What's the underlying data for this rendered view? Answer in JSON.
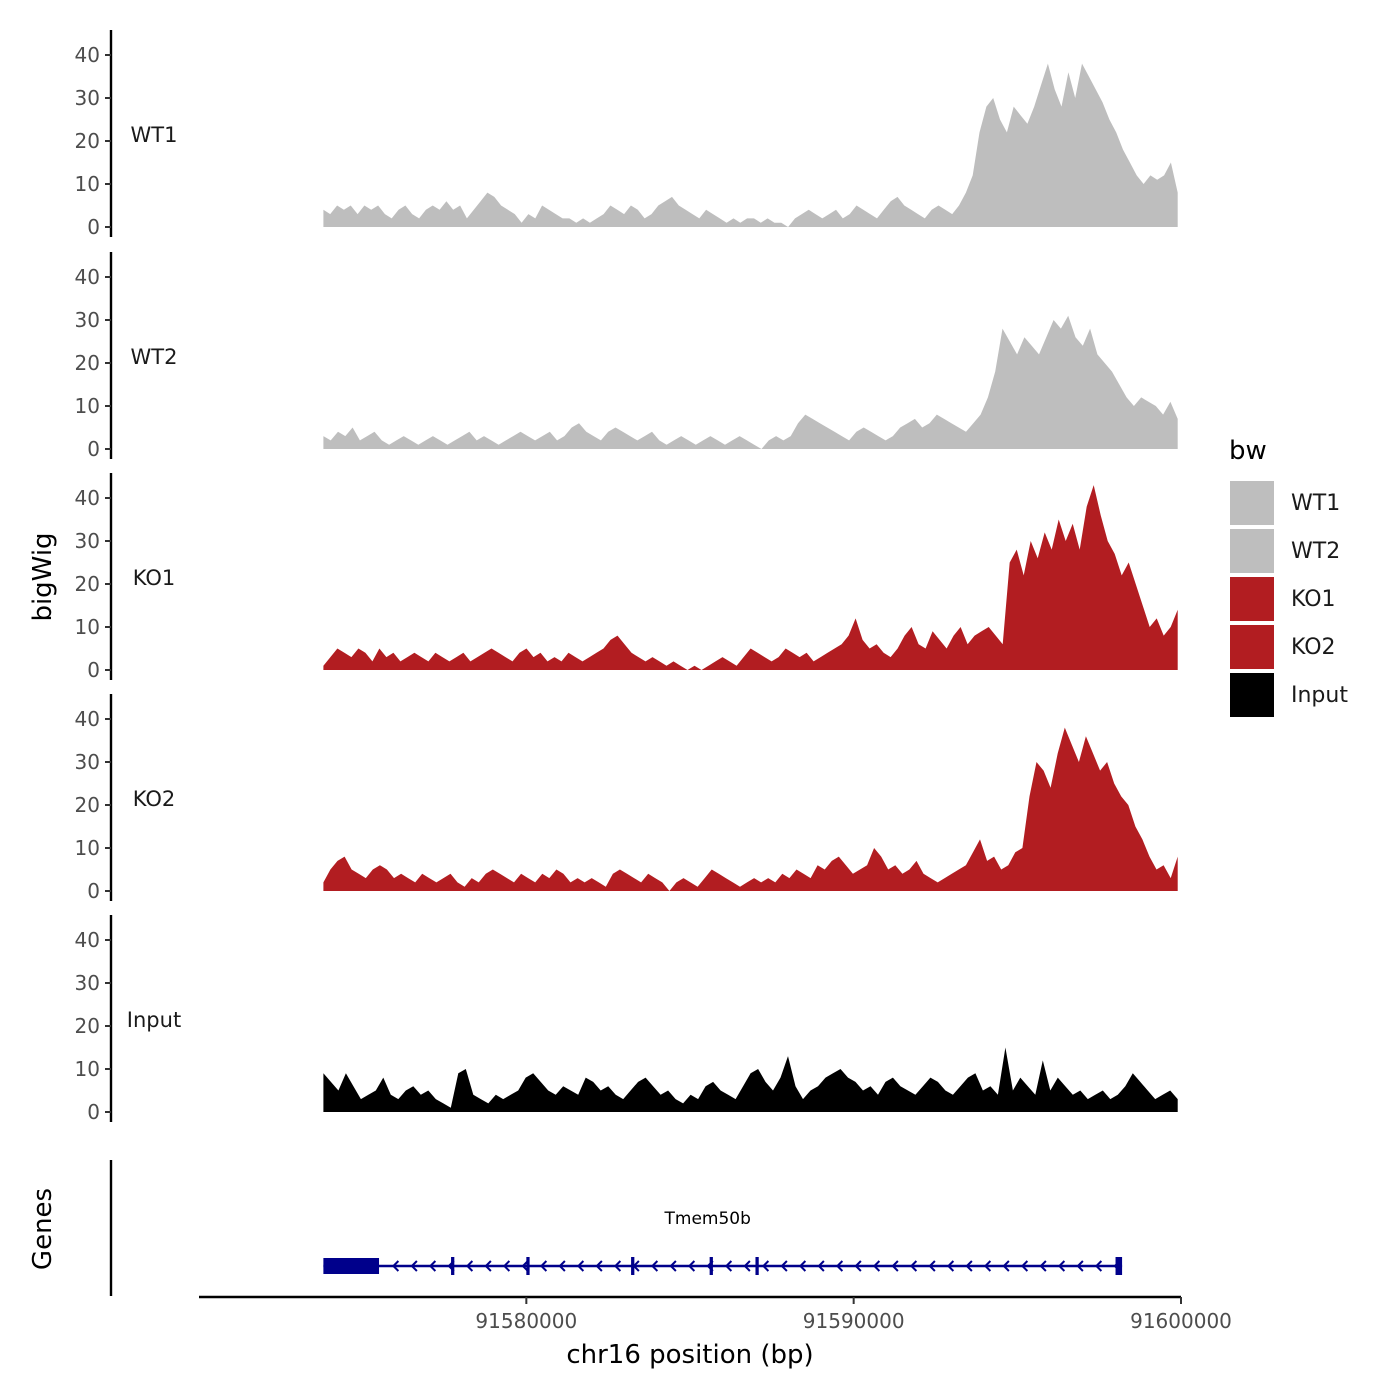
{
  "chart_data": {
    "type": "area",
    "ylabel": "bigWig",
    "xlabel": "chr16 position (bp)",
    "xlim": [
      91570000,
      91600000
    ],
    "ylim": [
      0,
      45
    ],
    "y_ticks": [
      0,
      10,
      20,
      30,
      40
    ],
    "y_tick_labels": [
      "0",
      "10",
      "20",
      "30",
      "40"
    ],
    "x_ticks": [
      91580000,
      91590000,
      91600000
    ],
    "x_tick_labels": [
      "91580000",
      "91590000",
      "91600000"
    ],
    "legend": {
      "title": "bw",
      "position": "right",
      "entries": [
        {
          "label": "WT1",
          "color": "#bebebe"
        },
        {
          "label": "WT2",
          "color": "#bebebe"
        },
        {
          "label": "KO1",
          "color": "#b21d21"
        },
        {
          "label": "KO2",
          "color": "#b21d21"
        },
        {
          "label": "Input",
          "color": "#000000"
        }
      ]
    },
    "tracks": [
      {
        "name": "WT1",
        "color": "#bebebe",
        "x_start": 91573800,
        "x_end": 91599900,
        "values": [
          4,
          3,
          5,
          4,
          5,
          3,
          5,
          4,
          5,
          3,
          2,
          4,
          5,
          3,
          2,
          4,
          5,
          4,
          6,
          4,
          5,
          2,
          4,
          6,
          8,
          7,
          5,
          4,
          3,
          1,
          3,
          2,
          5,
          4,
          3,
          2,
          2,
          1,
          2,
          1,
          2,
          3,
          5,
          4,
          3,
          5,
          4,
          2,
          3,
          5,
          6,
          7,
          5,
          4,
          3,
          2,
          4,
          3,
          2,
          1,
          2,
          1,
          2,
          2,
          1,
          2,
          1,
          1,
          0,
          2,
          3,
          4,
          3,
          2,
          3,
          4,
          2,
          3,
          5,
          4,
          3,
          2,
          4,
          6,
          7,
          5,
          4,
          3,
          2,
          4,
          5,
          4,
          3,
          5,
          8,
          12,
          22,
          28,
          30,
          25,
          22,
          28,
          26,
          24,
          28,
          33,
          38,
          32,
          28,
          36,
          30,
          38,
          35,
          32,
          29,
          25,
          22,
          18,
          15,
          12,
          10,
          12,
          11,
          12,
          15,
          8
        ]
      },
      {
        "name": "WT2",
        "color": "#bebebe",
        "x_start": 91573800,
        "x_end": 91599900,
        "values": [
          3,
          2,
          4,
          3,
          5,
          2,
          3,
          4,
          2,
          1,
          2,
          3,
          2,
          1,
          2,
          3,
          2,
          1,
          2,
          3,
          4,
          2,
          3,
          2,
          1,
          2,
          3,
          4,
          3,
          2,
          3,
          4,
          2,
          3,
          5,
          6,
          4,
          3,
          2,
          4,
          5,
          4,
          3,
          2,
          3,
          4,
          2,
          1,
          2,
          3,
          2,
          1,
          2,
          3,
          2,
          1,
          2,
          3,
          2,
          1,
          0,
          2,
          3,
          2,
          3,
          6,
          8,
          7,
          6,
          5,
          4,
          3,
          2,
          4,
          5,
          4,
          3,
          2,
          3,
          5,
          6,
          7,
          5,
          6,
          8,
          7,
          6,
          5,
          4,
          6,
          8,
          12,
          18,
          28,
          25,
          22,
          26,
          24,
          22,
          26,
          30,
          28,
          31,
          26,
          24,
          28,
          22,
          20,
          18,
          15,
          12,
          10,
          12,
          11,
          10,
          8,
          11,
          7
        ]
      },
      {
        "name": "KO1",
        "color": "#b21d21",
        "x_start": 91573800,
        "x_end": 91599900,
        "values": [
          1,
          3,
          5,
          4,
          3,
          5,
          4,
          2,
          5,
          3,
          4,
          2,
          3,
          4,
          3,
          2,
          4,
          3,
          2,
          3,
          4,
          2,
          3,
          4,
          5,
          4,
          3,
          2,
          4,
          5,
          3,
          4,
          2,
          3,
          2,
          4,
          3,
          2,
          3,
          4,
          5,
          7,
          8,
          6,
          4,
          3,
          2,
          3,
          2,
          1,
          2,
          1,
          0,
          1,
          0,
          1,
          2,
          3,
          2,
          1,
          3,
          5,
          4,
          3,
          2,
          3,
          5,
          4,
          3,
          4,
          2,
          3,
          4,
          5,
          6,
          8,
          12,
          7,
          5,
          6,
          4,
          3,
          5,
          8,
          10,
          6,
          5,
          9,
          7,
          5,
          8,
          10,
          6,
          8,
          9,
          10,
          8,
          6,
          25,
          28,
          22,
          30,
          26,
          32,
          28,
          35,
          30,
          34,
          28,
          38,
          43,
          36,
          30,
          27,
          22,
          25,
          20,
          15,
          10,
          12,
          8,
          10,
          14
        ]
      },
      {
        "name": "KO2",
        "color": "#b21d21",
        "x_start": 91573800,
        "x_end": 91599900,
        "values": [
          2,
          5,
          7,
          8,
          5,
          4,
          3,
          5,
          6,
          5,
          3,
          4,
          3,
          2,
          4,
          3,
          2,
          3,
          4,
          2,
          1,
          3,
          2,
          4,
          5,
          4,
          3,
          2,
          4,
          3,
          2,
          4,
          3,
          5,
          4,
          2,
          3,
          2,
          3,
          2,
          1,
          4,
          5,
          4,
          3,
          2,
          4,
          3,
          2,
          0,
          2,
          3,
          2,
          1,
          3,
          5,
          4,
          3,
          2,
          1,
          2,
          3,
          2,
          3,
          2,
          4,
          3,
          5,
          4,
          3,
          6,
          5,
          7,
          8,
          6,
          4,
          5,
          6,
          10,
          8,
          5,
          6,
          4,
          5,
          7,
          4,
          3,
          2,
          3,
          4,
          5,
          6,
          9,
          12,
          7,
          8,
          5,
          6,
          9,
          10,
          22,
          30,
          28,
          24,
          32,
          38,
          34,
          30,
          36,
          32,
          28,
          30,
          25,
          22,
          20,
          15,
          12,
          8,
          5,
          6,
          3,
          8
        ]
      },
      {
        "name": "Input",
        "color": "#000000",
        "x_start": 91573800,
        "x_end": 91599900,
        "values": [
          9,
          7,
          5,
          9,
          6,
          3,
          4,
          5,
          8,
          4,
          3,
          5,
          6,
          4,
          5,
          3,
          2,
          1,
          9,
          10,
          4,
          3,
          2,
          4,
          3,
          4,
          5,
          8,
          9,
          7,
          5,
          4,
          6,
          5,
          4,
          8,
          7,
          5,
          6,
          4,
          3,
          5,
          7,
          8,
          6,
          4,
          5,
          3,
          2,
          4,
          3,
          6,
          7,
          5,
          4,
          3,
          6,
          9,
          10,
          7,
          5,
          8,
          13,
          6,
          3,
          5,
          6,
          8,
          9,
          10,
          8,
          7,
          5,
          6,
          4,
          7,
          8,
          6,
          5,
          4,
          6,
          8,
          7,
          5,
          4,
          6,
          8,
          9,
          5,
          6,
          4,
          15,
          5,
          8,
          6,
          4,
          12,
          5,
          8,
          6,
          4,
          5,
          3,
          4,
          5,
          3,
          4,
          6,
          9,
          7,
          5,
          3,
          4,
          5,
          3
        ]
      }
    ],
    "genes": [
      {
        "name": "Tmem50b",
        "start": 91573800,
        "end": 91598200,
        "strand": "-",
        "exons": [
          [
            91573800,
            91575500
          ],
          [
            91577700,
            91577800
          ],
          [
            91580000,
            91580100
          ],
          [
            91583200,
            91583300
          ],
          [
            91585600,
            91585700
          ],
          [
            91587000,
            91587100
          ],
          [
            91598000,
            91598200
          ]
        ]
      }
    ],
    "genes_panel_label": "Genes"
  }
}
